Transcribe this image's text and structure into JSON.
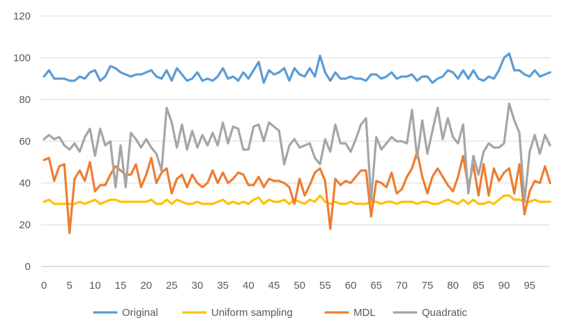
{
  "chart_data": {
    "type": "line",
    "title": "",
    "xlabel": "",
    "ylabel": "",
    "ylim": [
      0,
      120
    ],
    "yticks": [
      "0",
      "20",
      "40",
      "60",
      "80",
      "100",
      "120"
    ],
    "xticks": [
      "0",
      "5",
      "10",
      "15",
      "20",
      "25",
      "30",
      "35",
      "40",
      "45",
      "50",
      "55",
      "60",
      "65",
      "70",
      "75",
      "80",
      "85",
      "90",
      "95"
    ],
    "x_count": 100,
    "grid": "horizontal",
    "legend_position": "bottom",
    "series": [
      {
        "name": "Original",
        "color": "#5B9BD5",
        "values": [
          91,
          94,
          90,
          90,
          90,
          89,
          89,
          91,
          90,
          93,
          94,
          89,
          91,
          96,
          95,
          93,
          92,
          91,
          92,
          92,
          93,
          94,
          91,
          90,
          94,
          89,
          95,
          92,
          89,
          90,
          93,
          89,
          90,
          89,
          91,
          95,
          90,
          91,
          89,
          93,
          90,
          94,
          98,
          88,
          94,
          92,
          93,
          95,
          89,
          95,
          92,
          91,
          95,
          91,
          101,
          93,
          89,
          93,
          90,
          90,
          91,
          90,
          90,
          89,
          92,
          92,
          90,
          91,
          93,
          90,
          91,
          91,
          92,
          89,
          91,
          91,
          88,
          90,
          91,
          94,
          93,
          90,
          94,
          90,
          94,
          90,
          89,
          91,
          90,
          94,
          100,
          102,
          94,
          94,
          92,
          91,
          94,
          91,
          92,
          93
        ]
      },
      {
        "name": "Uniform sampling",
        "color": "#FFC000",
        "values": [
          31,
          32,
          30,
          30,
          30,
          30,
          30,
          31,
          30,
          31,
          32,
          30,
          31,
          32,
          32,
          31,
          31,
          31,
          31,
          31,
          31,
          32,
          30,
          30,
          32,
          30,
          32,
          31,
          30,
          30,
          31,
          30,
          30,
          30,
          31,
          32,
          30,
          31,
          30,
          31,
          30,
          32,
          33,
          30,
          32,
          31,
          31,
          32,
          30,
          32,
          31,
          30,
          32,
          31,
          34,
          31,
          30,
          31,
          30,
          30,
          31,
          30,
          30,
          30,
          31,
          31,
          30,
          31,
          31,
          30,
          31,
          31,
          31,
          30,
          31,
          31,
          30,
          30,
          31,
          32,
          31,
          30,
          32,
          30,
          32,
          30,
          30,
          31,
          30,
          32,
          34,
          34,
          32,
          32,
          31,
          31,
          32,
          31,
          31,
          31
        ]
      },
      {
        "name": "MDL",
        "color": "#ED7D31",
        "values": [
          51,
          52,
          41,
          48,
          49,
          16,
          42,
          46,
          41,
          50,
          36,
          39,
          39,
          44,
          48,
          46,
          44,
          44,
          49,
          38,
          44,
          52,
          40,
          45,
          47,
          35,
          42,
          44,
          38,
          44,
          40,
          38,
          40,
          46,
          40,
          45,
          40,
          42,
          45,
          44,
          39,
          39,
          43,
          38,
          42,
          41,
          41,
          40,
          38,
          30,
          42,
          34,
          39,
          45,
          47,
          41,
          18,
          42,
          39,
          41,
          40,
          43,
          46,
          46,
          24,
          41,
          40,
          38,
          45,
          35,
          37,
          43,
          47,
          55,
          43,
          35,
          43,
          47,
          43,
          39,
          36,
          43,
          53,
          38,
          49,
          34,
          49,
          34,
          47,
          41,
          45,
          47,
          35,
          49,
          25,
          36,
          41,
          40,
          48,
          40
        ]
      },
      {
        "name": "Quadratic",
        "color": "#A5A5A5",
        "values": [
          61,
          63,
          61,
          62,
          58,
          56,
          59,
          55,
          62,
          66,
          53,
          66,
          58,
          60,
          38,
          58,
          38,
          64,
          61,
          57,
          61,
          57,
          54,
          46,
          76,
          69,
          57,
          68,
          56,
          65,
          57,
          63,
          58,
          64,
          58,
          69,
          59,
          67,
          66,
          56,
          56,
          67,
          68,
          60,
          69,
          67,
          65,
          49,
          58,
          61,
          57,
          58,
          59,
          52,
          49,
          61,
          55,
          68,
          59,
          59,
          55,
          61,
          68,
          71,
          32,
          62,
          56,
          59,
          62,
          60,
          60,
          59,
          75,
          52,
          70,
          54,
          65,
          76,
          61,
          71,
          62,
          59,
          68,
          35,
          53,
          44,
          55,
          59,
          57,
          57,
          59,
          78,
          70,
          64,
          31,
          55,
          63,
          54,
          63,
          58
        ]
      }
    ]
  }
}
